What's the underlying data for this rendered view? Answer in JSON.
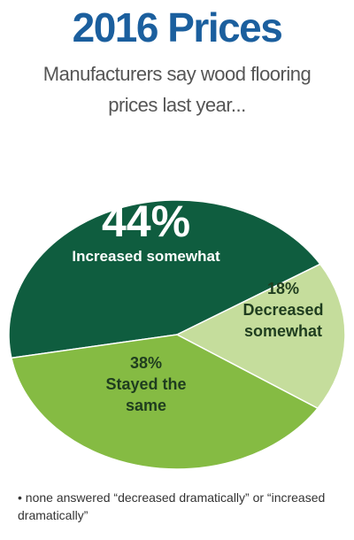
{
  "chart_data": {
    "type": "pie",
    "title": "2016 Prices",
    "subtitle": "Manufacturers say wood flooring prices last year...",
    "categories": [
      "Increased somewhat",
      "Decreased somewhat",
      "Stayed the same"
    ],
    "values": [
      44,
      18,
      38
    ],
    "value_labels": [
      "44%",
      "18%",
      "38%"
    ],
    "colors": [
      "#0f5d3f",
      "#c5dd9c",
      "#85bb43"
    ],
    "note": "• none answered “decreased dramatically” or “increased dramatically”"
  }
}
